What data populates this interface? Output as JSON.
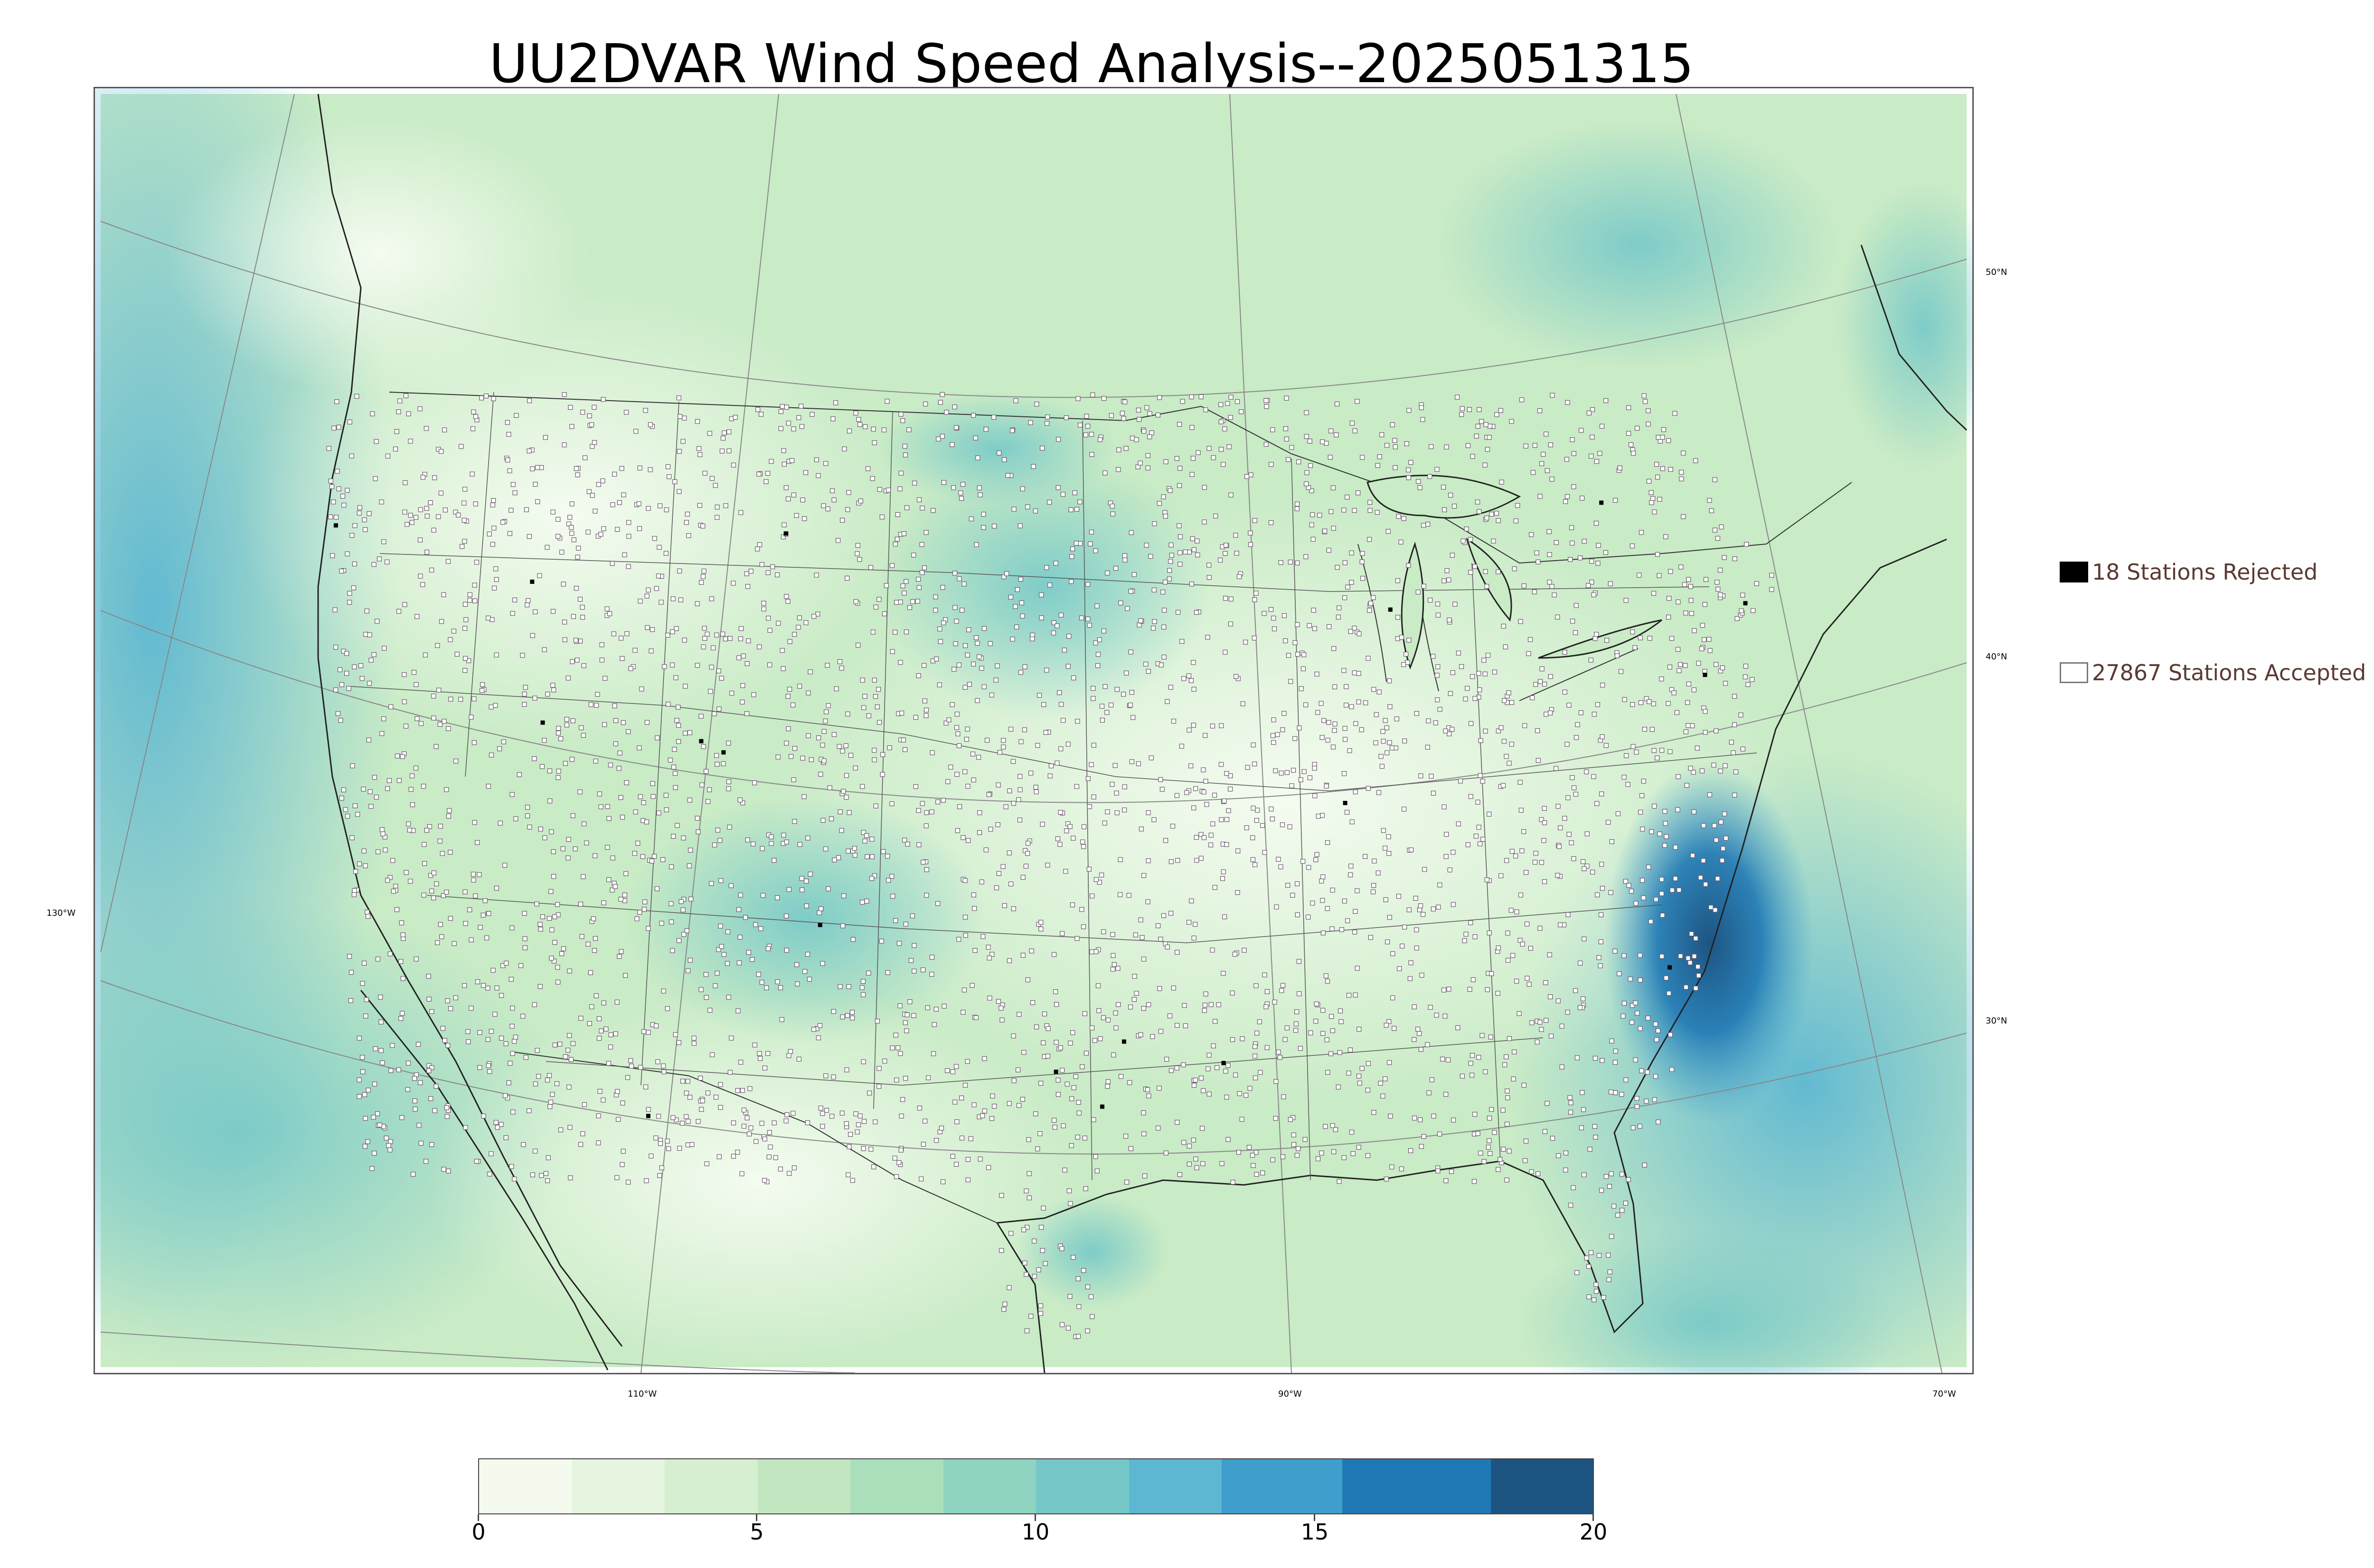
{
  "title": "UU2DVAR Wind Speed Analysis--2025051315",
  "map": {
    "projection": "Lambert Conformal",
    "background_colormap": "GnBu",
    "latitude_labels": [
      "50°N",
      "40°N",
      "30°N"
    ],
    "longitude_labels": [
      "130°W",
      "110°W",
      "90°W",
      "70°W"
    ]
  },
  "legend": {
    "rejected": {
      "label": "18 Stations Rejected",
      "count": 18,
      "color": "#000000"
    },
    "accepted": {
      "label": "27867 Stations Accepted",
      "count": 27867,
      "color": "#ffffff"
    }
  },
  "colorbar": {
    "min": 0,
    "max": 20,
    "tick_labels": [
      "0",
      "5",
      "10",
      "15",
      "20"
    ],
    "colors": [
      "#f4fbee",
      "#e6f5df",
      "#d6efd1",
      "#c2e7c0",
      "#aadfbb",
      "#8fd4c0",
      "#76c8c8",
      "#5db7d2",
      "#3f9ecb",
      "#1f78b4",
      "#1d5482"
    ]
  }
}
